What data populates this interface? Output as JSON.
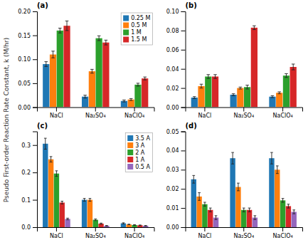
{
  "ylabel": "Pseudo First-order Reaction Rate Constant, k (M/hr)",
  "chart_data": [
    {
      "type": "bar",
      "title": "(a)",
      "categories": [
        "NaCl",
        "Na₂SO₄",
        "NaClO₄"
      ],
      "series": [
        {
          "name": "0.25 M",
          "values": [
            0.09,
            0.022,
            0.013
          ],
          "errors": [
            0.005,
            0.003,
            0.002
          ]
        },
        {
          "name": "0.5 M",
          "values": [
            0.11,
            0.075,
            0.016
          ],
          "errors": [
            0.007,
            0.004,
            0.002
          ]
        },
        {
          "name": "1 M",
          "values": [
            0.16,
            0.144,
            0.047
          ],
          "errors": [
            0.005,
            0.005,
            0.003
          ]
        },
        {
          "name": "1.5 M",
          "values": [
            0.17,
            0.135,
            0.06
          ],
          "errors": [
            0.01,
            0.005,
            0.003
          ]
        }
      ],
      "ylim": [
        0.0,
        0.2
      ],
      "yticks": [
        {
          "value": 0.0,
          "label": "0.00"
        },
        {
          "value": 0.05,
          "label": "0.05"
        },
        {
          "value": 0.1,
          "label": "0.10"
        },
        {
          "value": 0.15,
          "label": "0.15"
        },
        {
          "value": 0.2,
          "label": "0.20"
        }
      ],
      "grid": false,
      "legend": "upper right"
    },
    {
      "type": "bar",
      "title": "(b)",
      "categories": [
        "NaCl",
        "Na₂SO₄",
        "NaClO₄"
      ],
      "series": [
        {
          "values": [
            0.01,
            0.013,
            0.011
          ],
          "errors": [
            0.001,
            0.001,
            0.001
          ]
        },
        {
          "values": [
            0.022,
            0.02,
            0.015
          ],
          "errors": [
            0.002,
            0.001,
            0.001
          ]
        },
        {
          "values": [
            0.032,
            0.021,
            0.033
          ],
          "errors": [
            0.002,
            0.002,
            0.002
          ]
        },
        {
          "values": [
            0.032,
            0.083,
            0.042
          ],
          "errors": [
            0.002,
            0.002,
            0.003
          ]
        }
      ],
      "ylim": [
        0.0,
        0.1
      ],
      "yticks": [
        {
          "value": 0.0,
          "label": "0.00"
        },
        {
          "value": 0.02,
          "label": "0.02"
        },
        {
          "value": 0.04,
          "label": "0.04"
        },
        {
          "value": 0.06,
          "label": "0.06"
        },
        {
          "value": 0.08,
          "label": "0.08"
        },
        {
          "value": 0.1,
          "label": "0.10"
        }
      ],
      "grid": false
    },
    {
      "type": "bar",
      "title": "(c)",
      "categories": [
        "NaCl",
        "Na₂SO₄",
        "NaClO₄"
      ],
      "series": [
        {
          "name": "3.5 A",
          "values": [
            0.305,
            0.1,
            0.014
          ],
          "errors": [
            0.02,
            0.005,
            0.002
          ]
        },
        {
          "name": "3 A",
          "values": [
            0.248,
            0.1,
            0.01
          ],
          "errors": [
            0.01,
            0.005,
            0.001
          ]
        },
        {
          "name": "2 A",
          "values": [
            0.196,
            0.027,
            0.008
          ],
          "errors": [
            0.01,
            0.003,
            0.001
          ]
        },
        {
          "name": "1 A",
          "values": [
            0.09,
            0.013,
            0.007
          ],
          "errors": [
            0.005,
            0.002,
            0.001
          ]
        },
        {
          "name": "0.5 A",
          "values": [
            0.03,
            0.005,
            0.005
          ],
          "errors": [
            0.003,
            0.001,
            0.001
          ]
        }
      ],
      "ylim": [
        0.0,
        0.35
      ],
      "yticks": [
        {
          "value": 0.0,
          "label": "0.0"
        },
        {
          "value": 0.1,
          "label": "0.1"
        },
        {
          "value": 0.2,
          "label": "0.2"
        },
        {
          "value": 0.3,
          "label": "0.3"
        }
      ],
      "grid": false,
      "legend": "upper right"
    },
    {
      "type": "bar",
      "title": "(d)",
      "categories": [
        "NaCl",
        "Na₂SO₄",
        "NaClO₄"
      ],
      "series": [
        {
          "values": [
            0.025,
            0.036,
            0.036
          ],
          "errors": [
            0.002,
            0.003,
            0.003
          ]
        },
        {
          "values": [
            0.016,
            0.021,
            0.03
          ],
          "errors": [
            0.002,
            0.002,
            0.002
          ]
        },
        {
          "values": [
            0.012,
            0.009,
            0.014
          ],
          "errors": [
            0.001,
            0.001,
            0.001
          ]
        },
        {
          "values": [
            0.009,
            0.009,
            0.011
          ],
          "errors": [
            0.001,
            0.001,
            0.001
          ]
        },
        {
          "values": [
            0.005,
            0.005,
            0.008
          ],
          "errors": [
            0.001,
            0.001,
            0.001
          ]
        }
      ],
      "ylim": [
        0.0,
        0.05
      ],
      "yticks": [
        {
          "value": 0.0,
          "label": "0.00"
        },
        {
          "value": 0.01,
          "label": "0.01"
        },
        {
          "value": 0.02,
          "label": "0.02"
        },
        {
          "value": 0.03,
          "label": "0.03"
        },
        {
          "value": 0.04,
          "label": "0.04"
        },
        {
          "value": 0.05,
          "label": "0.05"
        }
      ],
      "grid": false
    }
  ]
}
